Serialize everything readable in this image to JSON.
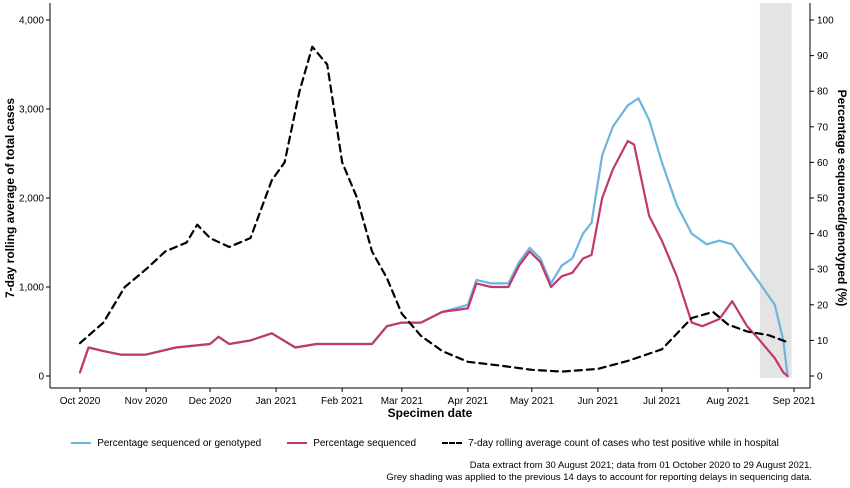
{
  "chart_data": {
    "type": "line",
    "title": "",
    "xlabel": "Specimen date",
    "ylabel_left": "7-day rolling average of total cases",
    "ylabel_right": "Percentage sequenced/genotyped (%)",
    "x_ticks": [
      "Oct 2020",
      "Nov 2020",
      "Dec 2020",
      "Jan 2021",
      "Feb 2021",
      "Mar 2021",
      "Apr 2021",
      "May 2021",
      "Jun 2021",
      "Jul 2021",
      "Aug 2021",
      "Sep 2021"
    ],
    "y_left_ticks": [
      "0",
      "1,000",
      "2,000",
      "3,000",
      "4,000"
    ],
    "y_right_ticks": [
      "0",
      "10",
      "20",
      "30",
      "40",
      "50",
      "60",
      "70",
      "80",
      "90",
      "100"
    ],
    "ylim_left": [
      0,
      4000
    ],
    "ylim_right": [
      0,
      100
    ],
    "xlim": [
      "2020-10-01",
      "2021-09-01"
    ],
    "shaded_region": [
      "2021-08-16",
      "2021-08-29"
    ],
    "grid": "none",
    "legend_position": "bottom",
    "series": [
      {
        "name": "Percentage sequenced or genotyped",
        "axis": "right",
        "color": "#6bb5de",
        "style": "solid",
        "points": [
          [
            "2020-10-01",
            1
          ],
          [
            "2020-10-05",
            8
          ],
          [
            "2020-10-12",
            7
          ],
          [
            "2020-10-20",
            6
          ],
          [
            "2020-11-01",
            6
          ],
          [
            "2020-11-15",
            8
          ],
          [
            "2020-12-01",
            9
          ],
          [
            "2020-12-05",
            11
          ],
          [
            "2020-12-10",
            9
          ],
          [
            "2020-12-20",
            10
          ],
          [
            "2020-12-30",
            12
          ],
          [
            "2021-01-10",
            8
          ],
          [
            "2021-01-20",
            9
          ],
          [
            "2021-02-01",
            9
          ],
          [
            "2021-02-15",
            9
          ],
          [
            "2021-02-22",
            14
          ],
          [
            "2021-03-01",
            15
          ],
          [
            "2021-03-10",
            15
          ],
          [
            "2021-03-20",
            18
          ],
          [
            "2021-04-01",
            20
          ],
          [
            "2021-04-05",
            27
          ],
          [
            "2021-04-12",
            26
          ],
          [
            "2021-04-20",
            26
          ],
          [
            "2021-04-25",
            32
          ],
          [
            "2021-04-30",
            36
          ],
          [
            "2021-05-05",
            33
          ],
          [
            "2021-05-10",
            26
          ],
          [
            "2021-05-15",
            31
          ],
          [
            "2021-05-20",
            33
          ],
          [
            "2021-05-25",
            40
          ],
          [
            "2021-05-29",
            43
          ],
          [
            "2021-06-03",
            62
          ],
          [
            "2021-06-08",
            70
          ],
          [
            "2021-06-15",
            76
          ],
          [
            "2021-06-20",
            78
          ],
          [
            "2021-06-25",
            72
          ],
          [
            "2021-07-01",
            60
          ],
          [
            "2021-07-08",
            48
          ],
          [
            "2021-07-15",
            40
          ],
          [
            "2021-07-22",
            37
          ],
          [
            "2021-07-28",
            38
          ],
          [
            "2021-08-03",
            37
          ],
          [
            "2021-08-10",
            31
          ],
          [
            "2021-08-16",
            26
          ],
          [
            "2021-08-23",
            20
          ],
          [
            "2021-08-27",
            10
          ],
          [
            "2021-08-29",
            0
          ]
        ]
      },
      {
        "name": "Percentage sequenced",
        "axis": "right",
        "color": "#c0396b",
        "style": "solid",
        "points": [
          [
            "2020-10-01",
            1
          ],
          [
            "2020-10-05",
            8
          ],
          [
            "2020-10-12",
            7
          ],
          [
            "2020-10-20",
            6
          ],
          [
            "2020-11-01",
            6
          ],
          [
            "2020-11-15",
            8
          ],
          [
            "2020-12-01",
            9
          ],
          [
            "2020-12-05",
            11
          ],
          [
            "2020-12-10",
            9
          ],
          [
            "2020-12-20",
            10
          ],
          [
            "2020-12-30",
            12
          ],
          [
            "2021-01-10",
            8
          ],
          [
            "2021-01-20",
            9
          ],
          [
            "2021-02-01",
            9
          ],
          [
            "2021-02-15",
            9
          ],
          [
            "2021-02-22",
            14
          ],
          [
            "2021-03-01",
            15
          ],
          [
            "2021-03-10",
            15
          ],
          [
            "2021-03-20",
            18
          ],
          [
            "2021-04-01",
            19
          ],
          [
            "2021-04-05",
            26
          ],
          [
            "2021-04-12",
            25
          ],
          [
            "2021-04-20",
            25
          ],
          [
            "2021-04-25",
            31
          ],
          [
            "2021-04-30",
            35
          ],
          [
            "2021-05-05",
            32
          ],
          [
            "2021-05-10",
            25
          ],
          [
            "2021-05-15",
            28
          ],
          [
            "2021-05-20",
            29
          ],
          [
            "2021-05-25",
            33
          ],
          [
            "2021-05-29",
            34
          ],
          [
            "2021-06-03",
            50
          ],
          [
            "2021-06-08",
            58
          ],
          [
            "2021-06-15",
            66
          ],
          [
            "2021-06-18",
            65
          ],
          [
            "2021-06-25",
            45
          ],
          [
            "2021-07-01",
            38
          ],
          [
            "2021-07-08",
            28
          ],
          [
            "2021-07-15",
            15
          ],
          [
            "2021-07-20",
            14
          ],
          [
            "2021-07-28",
            16
          ],
          [
            "2021-08-03",
            21
          ],
          [
            "2021-08-10",
            14
          ],
          [
            "2021-08-16",
            10
          ],
          [
            "2021-08-23",
            5
          ],
          [
            "2021-08-27",
            1
          ],
          [
            "2021-08-29",
            0
          ]
        ]
      },
      {
        "name": "7-day rolling average count of cases who test positive while in hospital",
        "axis": "left",
        "color": "#000000",
        "style": "dashed",
        "points": [
          [
            "2020-10-01",
            370
          ],
          [
            "2020-10-12",
            600
          ],
          [
            "2020-10-22",
            1000
          ],
          [
            "2020-11-01",
            1200
          ],
          [
            "2020-11-10",
            1400
          ],
          [
            "2020-11-20",
            1500
          ],
          [
            "2020-11-25",
            1700
          ],
          [
            "2020-12-01",
            1550
          ],
          [
            "2020-12-10",
            1450
          ],
          [
            "2020-12-20",
            1550
          ],
          [
            "2020-12-30",
            2200
          ],
          [
            "2021-01-05",
            2400
          ],
          [
            "2021-01-12",
            3200
          ],
          [
            "2021-01-18",
            3700
          ],
          [
            "2021-01-25",
            3500
          ],
          [
            "2021-02-01",
            2400
          ],
          [
            "2021-02-08",
            2000
          ],
          [
            "2021-02-15",
            1400
          ],
          [
            "2021-02-22",
            1100
          ],
          [
            "2021-03-01",
            700
          ],
          [
            "2021-03-10",
            450
          ],
          [
            "2021-03-20",
            280
          ],
          [
            "2021-04-01",
            160
          ],
          [
            "2021-04-15",
            120
          ],
          [
            "2021-05-01",
            70
          ],
          [
            "2021-05-15",
            50
          ],
          [
            "2021-06-01",
            80
          ],
          [
            "2021-06-15",
            170
          ],
          [
            "2021-07-01",
            300
          ],
          [
            "2021-07-15",
            650
          ],
          [
            "2021-07-25",
            720
          ],
          [
            "2021-08-01",
            580
          ],
          [
            "2021-08-10",
            500
          ],
          [
            "2021-08-20",
            460
          ],
          [
            "2021-08-29",
            380
          ]
        ]
      }
    ]
  },
  "legend": {
    "item1": "Percentage sequenced or genotyped",
    "item2": "Percentage sequenced",
    "item3": "7-day rolling average count of cases who test positive while in hospital"
  },
  "footnote": {
    "line1": "Data extract from 30 August 2021; data from 01 October 2020 to 29 August 2021.",
    "line2": "Grey shading was applied to the previous 14 days to account for reporting delays in sequencing data."
  }
}
